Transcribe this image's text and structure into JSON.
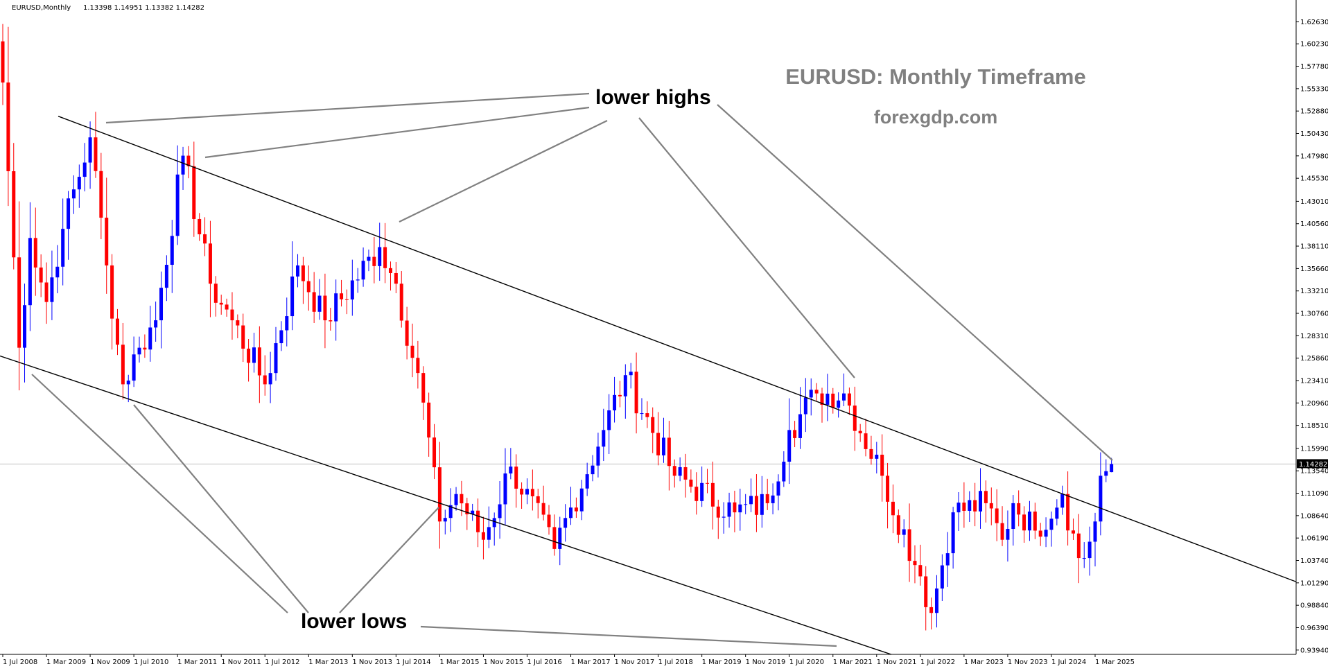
{
  "header": {
    "symbol_text": "EURUSD,Monthly",
    "ohlc_text": "1.13398 1.14951 1.13382 1.14282"
  },
  "overlay": {
    "title": "EURUSD: Monthly Timeframe",
    "site": "forexgdp.com",
    "lower_highs_label": "lower highs",
    "lower_lows_label": "lower lows"
  },
  "colors": {
    "bull": "#0000ff",
    "bear": "#ff0000",
    "trendline": "#000000",
    "annotation_line": "#808080",
    "title_color": "#808080",
    "current_price_line": "#c0c0c0"
  },
  "chart_data": {
    "type": "candlestick",
    "title": "EURUSD: Monthly Timeframe",
    "symbol": "EURUSD",
    "timeframe": "Monthly",
    "current_price": 1.14282,
    "current_price_label": "1.14282",
    "last_bar": {
      "open": 1.13398,
      "high": 1.14951,
      "low": 1.13382,
      "close": 1.14282
    },
    "ylim": [
      0.9347,
      1.6487
    ],
    "y_ticks": [
      "1.62630",
      "1.60230",
      "1.57780",
      "1.55330",
      "1.52880",
      "1.50430",
      "1.47980",
      "1.45530",
      "1.43010",
      "1.40560",
      "1.38110",
      "1.35660",
      "1.33210",
      "1.30760",
      "1.28310",
      "1.25860",
      "1.23410",
      "1.20960",
      "1.18510",
      "1.15990",
      "1.13540",
      "1.11090",
      "1.08640",
      "1.06190",
      "1.03740",
      "1.01290",
      "0.98840",
      "0.96390",
      "0.93940"
    ],
    "x_ticks": [
      "1 Jul 2008",
      "1 Mar 2009",
      "1 Nov 2009",
      "1 Jul 2010",
      "1 Mar 2011",
      "1 Nov 2011",
      "1 Jul 2012",
      "1 Mar 2013",
      "1 Nov 2013",
      "1 Jul 2014",
      "1 Mar 2015",
      "1 Nov 2015",
      "1 Jul 2016",
      "1 Mar 2017",
      "1 Nov 2017",
      "1 Jul 2018",
      "1 Mar 2019",
      "1 Nov 2019",
      "1 Jul 2020",
      "1 Mar 2021",
      "1 Nov 2021",
      "1 Jul 2022",
      "1 Mar 2023",
      "1 Nov 2023",
      "1 Jul 2024",
      "1 Mar 2025"
    ],
    "x_range": [
      "2008-07",
      "2025-06"
    ],
    "key_closes": [
      {
        "date": "2008-07",
        "close": 1.56
      },
      {
        "date": "2008-10",
        "close": 1.27
      },
      {
        "date": "2008-12",
        "close": 1.39
      },
      {
        "date": "2009-03",
        "close": 1.32
      },
      {
        "date": "2009-06",
        "close": 1.4
      },
      {
        "date": "2009-11",
        "close": 1.5
      },
      {
        "date": "2010-02",
        "close": 1.36
      },
      {
        "date": "2010-05",
        "close": 1.23
      },
      {
        "date": "2010-08",
        "close": 1.27
      },
      {
        "date": "2010-11",
        "close": 1.3
      },
      {
        "date": "2011-04",
        "close": 1.48
      },
      {
        "date": "2011-09",
        "close": 1.34
      },
      {
        "date": "2012-01",
        "close": 1.3
      },
      {
        "date": "2012-07",
        "close": 1.23
      },
      {
        "date": "2013-01",
        "close": 1.36
      },
      {
        "date": "2013-06",
        "close": 1.3
      },
      {
        "date": "2014-04",
        "close": 1.38
      },
      {
        "date": "2014-07",
        "close": 1.34
      },
      {
        "date": "2014-12",
        "close": 1.21
      },
      {
        "date": "2015-03",
        "close": 1.08
      },
      {
        "date": "2015-06",
        "close": 1.11
      },
      {
        "date": "2015-11",
        "close": 1.06
      },
      {
        "date": "2016-04",
        "close": 1.14
      },
      {
        "date": "2016-12",
        "close": 1.05
      },
      {
        "date": "2017-09",
        "close": 1.18
      },
      {
        "date": "2018-01",
        "close": 1.24
      },
      {
        "date": "2018-10",
        "close": 1.13
      },
      {
        "date": "2019-09",
        "close": 1.09
      },
      {
        "date": "2020-03",
        "close": 1.1
      },
      {
        "date": "2020-07",
        "close": 1.18
      },
      {
        "date": "2020-12",
        "close": 1.22
      },
      {
        "date": "2021-05",
        "close": 1.22
      },
      {
        "date": "2021-12",
        "close": 1.13
      },
      {
        "date": "2022-07",
        "close": 1.02
      },
      {
        "date": "2022-09",
        "close": 0.98
      },
      {
        "date": "2023-01",
        "close": 1.09
      },
      {
        "date": "2023-07",
        "close": 1.1
      },
      {
        "date": "2023-10",
        "close": 1.06
      },
      {
        "date": "2023-12",
        "close": 1.1
      },
      {
        "date": "2024-04",
        "close": 1.07
      },
      {
        "date": "2024-09",
        "close": 1.11
      },
      {
        "date": "2024-12",
        "close": 1.04
      },
      {
        "date": "2025-01",
        "close": 1.04
      },
      {
        "date": "2025-03",
        "close": 1.08
      },
      {
        "date": "2025-04",
        "close": 1.13
      },
      {
        "date": "2025-05",
        "close": 1.135
      },
      {
        "date": "2025-06",
        "close": 1.14282
      }
    ],
    "trendlines": [
      {
        "name": "upper channel (lower highs)",
        "from": {
          "date": "2009-11",
          "price": 1.51
        },
        "to": {
          "date": "2025-06",
          "price": 1.09
        }
      },
      {
        "name": "lower channel (lower lows)",
        "from": {
          "date": "2008-07",
          "price": 1.26
        },
        "to": {
          "date": "2021-11",
          "price": 0.94
        }
      }
    ],
    "annotations": [
      "lower highs",
      "lower lows"
    ]
  }
}
